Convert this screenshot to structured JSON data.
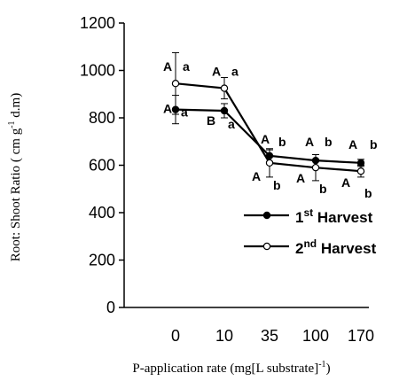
{
  "chart_data": {
    "type": "line",
    "xlabel": "P-application rate (mg[L substrate]",
    "xlabel_sup": "-1",
    "xlabel_close": ")",
    "ylabel": "Root: Shoot Ratio ( cm g",
    "ylabel_sup": "-1",
    "ylabel_end": " d.m)",
    "categories": [
      "0",
      "10",
      "35",
      "100",
      "170"
    ],
    "ylim": [
      0,
      1200
    ],
    "yticks": [
      "0",
      "200",
      "400",
      "600",
      "800",
      "1000",
      "1200"
    ],
    "grid": false,
    "legend_position": "right-middle",
    "series": [
      {
        "name": "1st Harvest",
        "name_main": "1",
        "name_sup": "st",
        "name_rest": " Harvest",
        "marker": "filled",
        "values": [
          835,
          830,
          640,
          620,
          610
        ],
        "errors": [
          60,
          30,
          25,
          25,
          15
        ],
        "labels_upper": [
          "A",
          "B",
          "A",
          "A",
          "A"
        ],
        "labels_lower": [
          "a",
          "a",
          "b",
          "b",
          "b"
        ]
      },
      {
        "name": "2nd Harvest",
        "name_main": "2",
        "name_sup": "nd",
        "name_rest": " Harvest",
        "marker": "open",
        "values": [
          945,
          925,
          610,
          590,
          575
        ],
        "errors": [
          130,
          45,
          60,
          55,
          25
        ],
        "labels_upper": [
          "A",
          "A",
          "A",
          "A",
          "A"
        ],
        "labels_lower": [
          "a",
          "a",
          "b",
          "b",
          "b"
        ]
      }
    ]
  }
}
